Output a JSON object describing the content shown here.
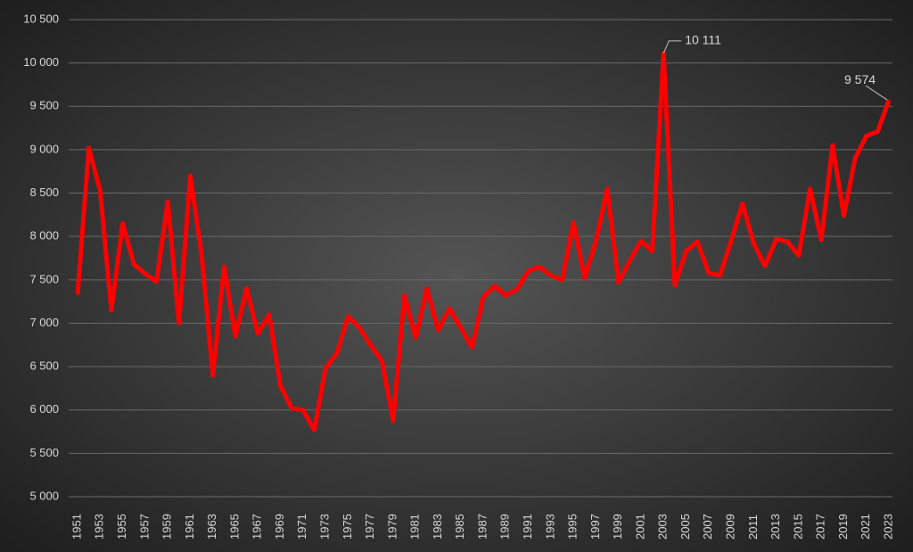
{
  "chart_data": {
    "type": "line",
    "categories": [
      "1951",
      null,
      "1953",
      null,
      "1955",
      null,
      "1957",
      null,
      "1959",
      null,
      "1961",
      null,
      "1963",
      null,
      "1965",
      null,
      "1967",
      null,
      "1969",
      null,
      "1971",
      null,
      "1973",
      null,
      "1975",
      null,
      "1977",
      null,
      "1979",
      null,
      "1981",
      null,
      "1983",
      null,
      "1985",
      null,
      "1987",
      null,
      "1989",
      null,
      "1991",
      null,
      "1993",
      null,
      "1995",
      null,
      "1997",
      null,
      "1999",
      null,
      "2001",
      null,
      "2003",
      null,
      "2005",
      null,
      "2007",
      null,
      "2009",
      null,
      "2011",
      null,
      "2013",
      null,
      "2015",
      null,
      "2017",
      null,
      "2019",
      null,
      "2021",
      null,
      "2023"
    ],
    "values": [
      7330,
      9020,
      8530,
      7150,
      8150,
      7680,
      7570,
      7480,
      8400,
      7000,
      8700,
      7800,
      6400,
      7650,
      6850,
      7400,
      6880,
      7100,
      6280,
      6020,
      6000,
      5770,
      6480,
      6650,
      7080,
      6950,
      6750,
      6570,
      5880,
      7320,
      6830,
      7400,
      6920,
      7170,
      6950,
      6720,
      7300,
      7430,
      7320,
      7390,
      7600,
      7650,
      7550,
      7500,
      8160,
      7520,
      7950,
      8550,
      7470,
      7720,
      7950,
      7830,
      10111,
      7440,
      7830,
      7940,
      7580,
      7550,
      7950,
      8380,
      7920,
      7660,
      7970,
      7940,
      7780,
      8550,
      7960,
      9050,
      8240,
      8900,
      9160,
      9210,
      9574
    ],
    "value_labels": [
      null,
      null,
      null,
      null,
      null,
      null,
      null,
      null,
      null,
      null,
      null,
      null,
      null,
      null,
      null,
      null,
      null,
      null,
      null,
      null,
      null,
      null,
      null,
      null,
      null,
      null,
      null,
      null,
      null,
      null,
      null,
      null,
      null,
      null,
      null,
      null,
      null,
      null,
      null,
      null,
      null,
      null,
      null,
      null,
      null,
      null,
      null,
      null,
      null,
      null,
      null,
      null,
      "10 111",
      null,
      null,
      null,
      null,
      null,
      null,
      null,
      null,
      null,
      null,
      null,
      null,
      null,
      null,
      null,
      null,
      null,
      null,
      null,
      "9 574"
    ],
    "color": "#ff0000",
    "ylim": [
      5000,
      10500
    ],
    "yticks": [
      {
        "value": 5000,
        "label": "5 000"
      },
      {
        "value": 5500,
        "label": "5 500"
      },
      {
        "value": 6000,
        "label": "6 000"
      },
      {
        "value": 6500,
        "label": "6 500"
      },
      {
        "value": 7000,
        "label": "7 000"
      },
      {
        "value": 7500,
        "label": "7 500"
      },
      {
        "value": 8000,
        "label": "8 000"
      },
      {
        "value": 8500,
        "label": "8 500"
      },
      {
        "value": 9000,
        "label": "9 000"
      },
      {
        "value": 9500,
        "label": "9 500"
      },
      {
        "value": 10000,
        "label": "10 000"
      },
      {
        "value": 10500,
        "label": "10 500"
      }
    ],
    "grid": true
  }
}
